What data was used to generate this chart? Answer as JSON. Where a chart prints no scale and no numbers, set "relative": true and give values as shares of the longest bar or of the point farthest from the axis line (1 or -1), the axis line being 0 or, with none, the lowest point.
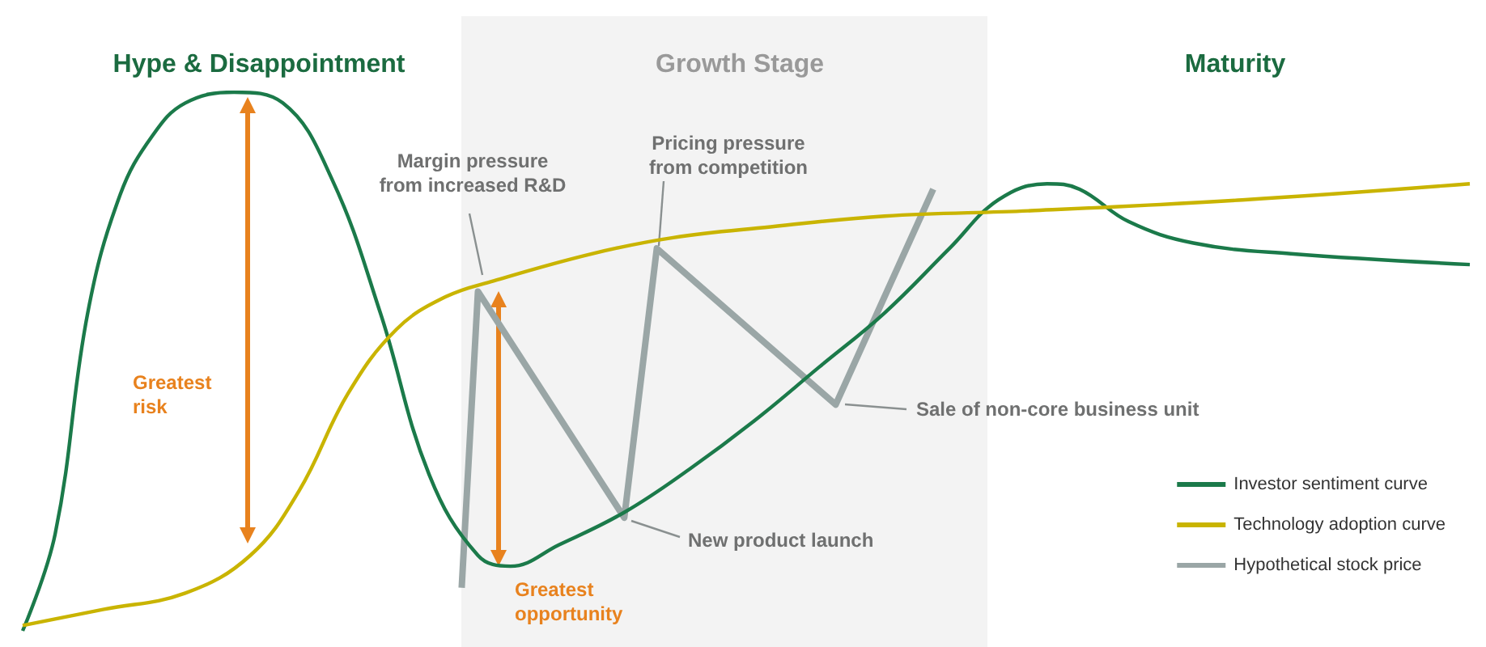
{
  "chart_data": {
    "type": "line",
    "relative": true,
    "categories": [
      null,
      null,
      null,
      null,
      null,
      null,
      null,
      null,
      null,
      null,
      null,
      null,
      null,
      null,
      null,
      null,
      null,
      null,
      null,
      null,
      null,
      null,
      null,
      null,
      null,
      null,
      null,
      null,
      null,
      null,
      null,
      null,
      null,
      null,
      null,
      null,
      null,
      null,
      null,
      null,
      null,
      null,
      null,
      null,
      null,
      null,
      null,
      null,
      null,
      null,
      null,
      null,
      null,
      null,
      null,
      null,
      null,
      null,
      null,
      null,
      null,
      null,
      null,
      null,
      null,
      null,
      null,
      null,
      null,
      null,
      null,
      null,
      null,
      null,
      null,
      null,
      null,
      null,
      null,
      null,
      null,
      null,
      null,
      null,
      null,
      null,
      null,
      null,
      null,
      null
    ],
    "series": [
      {
        "name": "Investor sentiment curve",
        "color": "#1b7a4a",
        "values": [
          0,
          null,
          0.18,
          null,
          0.59,
          null,
          0.81,
          null,
          0.92,
          null,
          0.98,
          null,
          null,
          1,
          null,
          null,
          0.98,
          null,
          null,
          0.84,
          null,
          null,
          0.59,
          null,
          null,
          0.29,
          null,
          null,
          0.14,
          null,
          0.12,
          null,
          null,
          0.16,
          null,
          null,
          null,
          0.22,
          null,
          null,
          null,
          0.3,
          null,
          null,
          null,
          0.39,
          null,
          null,
          null,
          0.49,
          null,
          null,
          null,
          0.59,
          null,
          null,
          null,
          0.71,
          null,
          null,
          0.8,
          null,
          null,
          0.83,
          null,
          0.82,
          null,
          null,
          0.76,
          null,
          null,
          null,
          0.72,
          null,
          null,
          null,
          null,
          null,
          0.7,
          null,
          null,
          null,
          null,
          null,
          null,
          null,
          null,
          null,
          null,
          0.68
        ]
      },
      {
        "name": "Technology adoption curve",
        "color": "#c9b400",
        "values": [
          0.01,
          null,
          null,
          null,
          null,
          0.04,
          null,
          null,
          null,
          null,
          0.07,
          null,
          null,
          null,
          0.14,
          null,
          null,
          0.26,
          null,
          null,
          0.44,
          null,
          null,
          0.56,
          null,
          null,
          0.62,
          null,
          null,
          0.65,
          null,
          null,
          null,
          null,
          null,
          0.7,
          null,
          null,
          null,
          null,
          0.73,
          null,
          null,
          null,
          null,
          null,
          0.75,
          null,
          null,
          null,
          null,
          null,
          null,
          0.77,
          null,
          null,
          null,
          null,
          null,
          null,
          null,
          null,
          0.78,
          null,
          null,
          null,
          null,
          null,
          null,
          null,
          null,
          null,
          null,
          null,
          null,
          0.8,
          null,
          null,
          null,
          null,
          null,
          null,
          null,
          null,
          null,
          null,
          null,
          null,
          null,
          0.83
        ]
      },
      {
        "name": "Hypothetical stock price",
        "color": "#9aa6a6",
        "values": [
          null,
          null,
          null,
          null,
          null,
          null,
          null,
          null,
          null,
          null,
          null,
          null,
          null,
          null,
          null,
          null,
          null,
          null,
          null,
          null,
          null,
          null,
          null,
          null,
          null,
          null,
          null,
          0.08,
          0.63,
          null,
          null,
          null,
          null,
          null,
          null,
          null,
          null,
          0.21,
          null,
          0.71,
          null,
          null,
          null,
          null,
          null,
          null,
          null,
          null,
          null,
          null,
          0.42,
          null,
          null,
          null,
          null,
          null,
          0.82,
          null,
          null,
          null,
          null,
          null,
          null,
          null,
          null,
          null,
          null,
          null,
          null,
          null,
          null,
          null,
          null,
          null,
          null,
          null,
          null,
          null,
          null,
          null,
          null,
          null,
          null,
          null,
          null,
          null,
          null,
          null,
          null,
          null
        ]
      }
    ],
    "annotations": [
      "Hype & Disappointment",
      "Growth Stage",
      "Maturity",
      "Margin pressure\nfrom increased R&D",
      "Pricing pressure\nfrom competition",
      "Sale of non-core business unit",
      "New product launch",
      "Greatest\nrisk",
      "Greatest\nopportunity"
    ],
    "legend": "bottom right",
    "grid": false,
    "marker": "none"
  }
}
